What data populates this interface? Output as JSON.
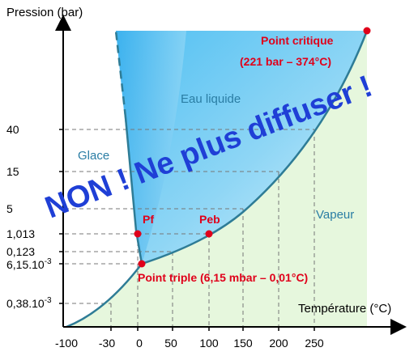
{
  "axes": {
    "y_title": "Pression (bar)",
    "x_title": "Température (°C)",
    "x_ticks": [
      "-100",
      "-30",
      "0",
      "50",
      "100",
      "150",
      "200",
      "250"
    ],
    "y_ticks": [
      "40",
      "15",
      "5",
      "1,013",
      "0,123",
      "6,15.10",
      "0,38.10"
    ],
    "y_tick_exponent": "-3"
  },
  "regions": {
    "liquid": "Eau liquide",
    "ice": "Glace",
    "vapor": "Vapeur"
  },
  "points": {
    "critical_title": "Point critique",
    "critical_detail": "(221 bar – 374°C)",
    "melting": "Pf",
    "boiling": "Peb",
    "triple": "Point triple (6,15 mbar – 0,01°C)"
  },
  "watermark": "NON ! Ne plus diffuser !",
  "colors": {
    "liquid": "#3cb4f0",
    "vapor": "#e6f7dd",
    "curve": "#2e7c96",
    "points": "#e0001a",
    "watermark": "#1f3fd6"
  }
}
